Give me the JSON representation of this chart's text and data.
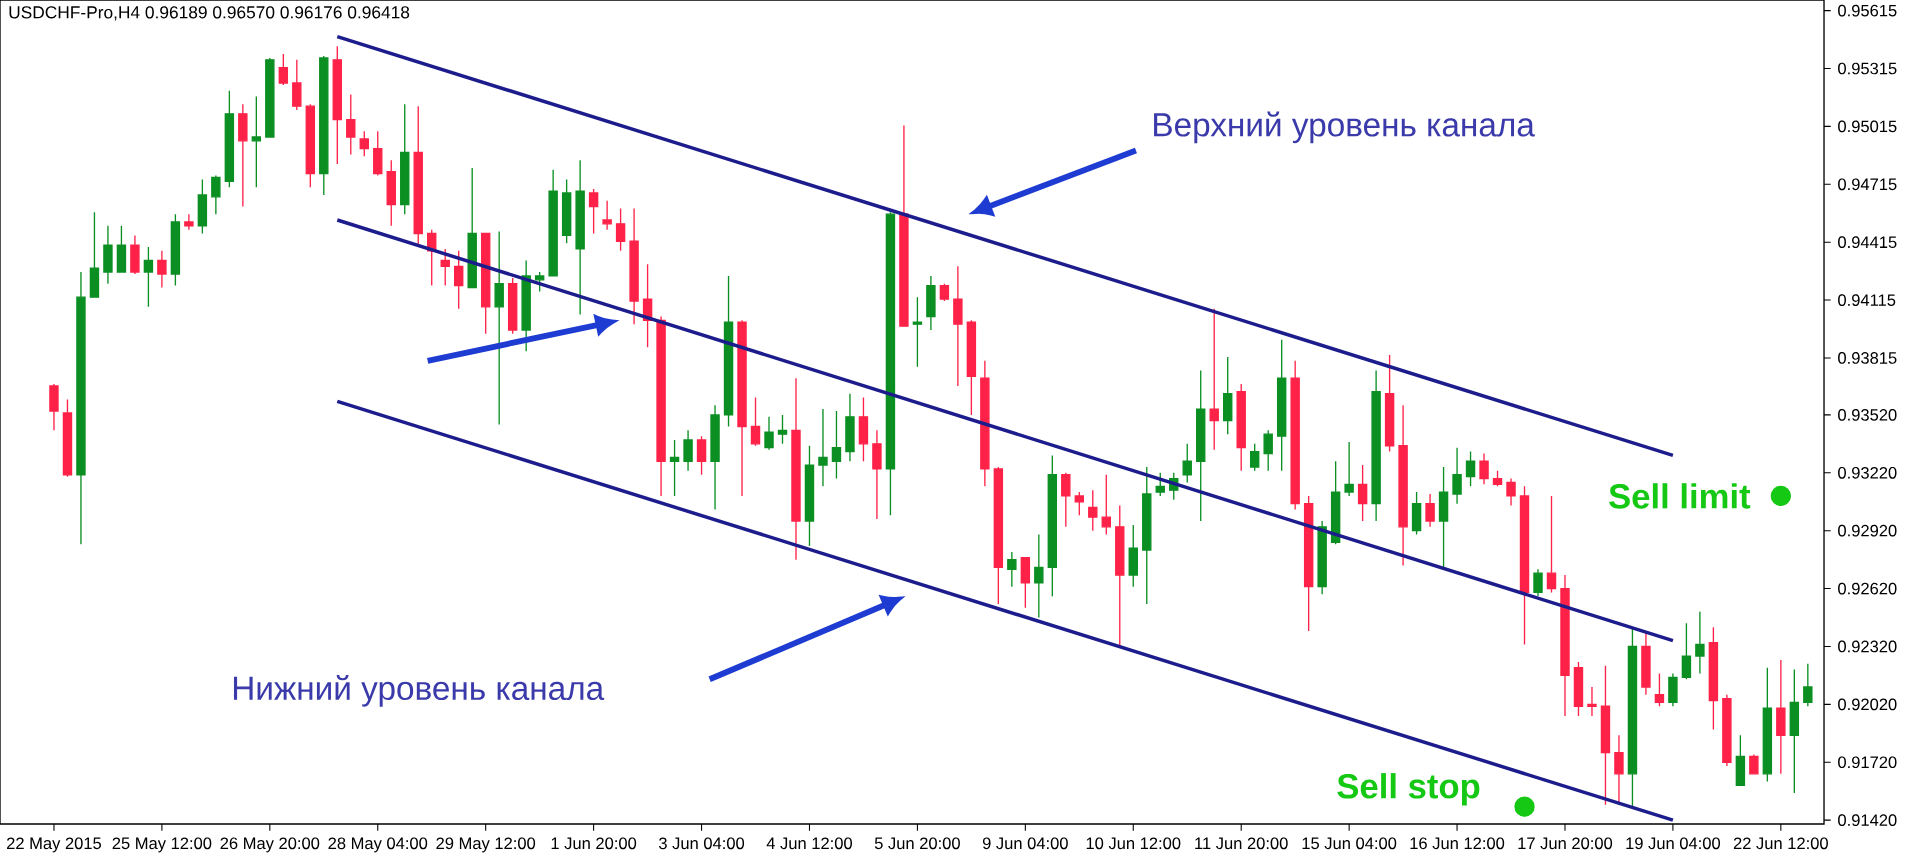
{
  "chart_data": {
    "type": "candlestick",
    "title": "USDCHF-Pro,H4  0.96189 0.96570 0.96176 0.96418",
    "categories": [
      "22 May 2015",
      null,
      null,
      null,
      null,
      null,
      null,
      null,
      "25 May 12:00",
      null,
      null,
      null,
      null,
      null,
      null,
      null,
      "26 May 20:00",
      null,
      null,
      null,
      null,
      null,
      null,
      null,
      "28 May 04:00",
      null,
      null,
      null,
      null,
      null,
      null,
      null,
      "29 May 12:00",
      null,
      null,
      null,
      null,
      null,
      null,
      null,
      "1 Jun 20:00",
      null,
      null,
      null,
      null,
      null,
      null,
      null,
      "3 Jun 04:00",
      null,
      null,
      null,
      null,
      null,
      null,
      null,
      "4 Jun 12:00",
      null,
      null,
      null,
      null,
      null,
      null,
      null,
      "5 Jun 20:00",
      null,
      null,
      null,
      null,
      null,
      null,
      null,
      "9 Jun 04:00",
      null,
      null,
      null,
      null,
      null,
      null,
      null,
      "10 Jun 12:00",
      null,
      null,
      null,
      null,
      null,
      null,
      null,
      "11 Jun 20:00",
      null,
      null,
      null,
      null,
      null,
      null,
      null,
      "15 Jun 04:00",
      null,
      null,
      null,
      null,
      null,
      null,
      null,
      "16 Jun 12:00",
      null,
      null,
      null,
      null,
      null,
      null,
      null,
      "17 Jun 20:00",
      null,
      null,
      null,
      null,
      null,
      null,
      null,
      "19 Jun 04:00",
      null,
      null,
      null,
      null,
      null,
      null,
      null,
      "22 Jun 12:00",
      null,
      null
    ],
    "ohlc": [
      [
        0.9367,
        0.9368,
        0.9344,
        0.9354
      ],
      [
        0.9353,
        0.936,
        0.932,
        0.9321
      ],
      [
        0.9321,
        0.9426,
        0.9285,
        0.9413
      ],
      [
        0.9413,
        0.9457,
        0.9413,
        0.9428
      ],
      [
        0.9426,
        0.945,
        0.942,
        0.944
      ],
      [
        0.9426,
        0.945,
        0.9426,
        0.944
      ],
      [
        0.944,
        0.9445,
        0.9425,
        0.9426
      ],
      [
        0.9426,
        0.9439,
        0.9408,
        0.9432
      ],
      [
        0.9432,
        0.9437,
        0.9418,
        0.9425
      ],
      [
        0.9425,
        0.9456,
        0.9419,
        0.9452
      ],
      [
        0.9452,
        0.9456,
        0.9448,
        0.945
      ],
      [
        0.945,
        0.9474,
        0.9446,
        0.9466
      ],
      [
        0.9465,
        0.9476,
        0.9456,
        0.9475
      ],
      [
        0.9473,
        0.952,
        0.947,
        0.9508
      ],
      [
        0.9508,
        0.9513,
        0.946,
        0.9494
      ],
      [
        0.9494,
        0.9517,
        0.947,
        0.9496
      ],
      [
        0.9496,
        0.9537,
        0.9496,
        0.9536
      ],
      [
        0.9532,
        0.9539,
        0.9523,
        0.9524
      ],
      [
        0.9524,
        0.9536,
        0.951,
        0.9512
      ],
      [
        0.9512,
        0.9513,
        0.947,
        0.9477
      ],
      [
        0.9477,
        0.9538,
        0.9466,
        0.9537
      ],
      [
        0.9536,
        0.9543,
        0.9482,
        0.9505
      ],
      [
        0.9505,
        0.9518,
        0.9487,
        0.9496
      ],
      [
        0.9495,
        0.9499,
        0.9486,
        0.949
      ],
      [
        0.949,
        0.9499,
        0.9476,
        0.9477
      ],
      [
        0.9478,
        0.9484,
        0.945,
        0.9461
      ],
      [
        0.9461,
        0.9513,
        0.9456,
        0.9488
      ],
      [
        0.9488,
        0.9512,
        0.9439,
        0.9446
      ],
      [
        0.9446,
        0.9448,
        0.9419,
        0.9437
      ],
      [
        0.9432,
        0.9438,
        0.9419,
        0.9429
      ],
      [
        0.9429,
        0.9437,
        0.9407,
        0.9419
      ],
      [
        0.9418,
        0.948,
        0.9418,
        0.9446
      ],
      [
        0.9446,
        0.9446,
        0.9394,
        0.9408
      ],
      [
        0.9408,
        0.9447,
        0.9347,
        0.942
      ],
      [
        0.942,
        0.9423,
        0.9394,
        0.9396
      ],
      [
        0.9396,
        0.9432,
        0.9385,
        0.9424
      ],
      [
        0.9422,
        0.9426,
        0.9416,
        0.9424
      ],
      [
        0.9424,
        0.9479,
        0.9424,
        0.9468
      ],
      [
        0.9445,
        0.9474,
        0.9441,
        0.9467
      ],
      [
        0.9438,
        0.9484,
        0.9404,
        0.9468
      ],
      [
        0.9467,
        0.9469,
        0.9446,
        0.946
      ],
      [
        0.9453,
        0.9463,
        0.9448,
        0.9451
      ],
      [
        0.9451,
        0.9459,
        0.9437,
        0.9442
      ],
      [
        0.9442,
        0.9459,
        0.9399,
        0.9411
      ],
      [
        0.9412,
        0.943,
        0.9387,
        0.9401
      ],
      [
        0.9401,
        0.9403,
        0.931,
        0.9328
      ],
      [
        0.9328,
        0.9339,
        0.931,
        0.933
      ],
      [
        0.9328,
        0.9344,
        0.9323,
        0.9339
      ],
      [
        0.9339,
        0.9341,
        0.9321,
        0.9328
      ],
      [
        0.9328,
        0.9357,
        0.9303,
        0.9352
      ],
      [
        0.9352,
        0.9424,
        0.9346,
        0.94
      ],
      [
        0.94,
        0.9401,
        0.931,
        0.9346
      ],
      [
        0.9346,
        0.9361,
        0.9336,
        0.9337
      ],
      [
        0.9335,
        0.9351,
        0.9334,
        0.9343
      ],
      [
        0.9342,
        0.9352,
        0.9337,
        0.9344
      ],
      [
        0.9344,
        0.9371,
        0.9277,
        0.9297
      ],
      [
        0.9297,
        0.9336,
        0.9284,
        0.9326
      ],
      [
        0.9326,
        0.9355,
        0.9315,
        0.933
      ],
      [
        0.9328,
        0.9354,
        0.9319,
        0.9335
      ],
      [
        0.9333,
        0.9363,
        0.9328,
        0.9351
      ],
      [
        0.9351,
        0.9361,
        0.9328,
        0.9337
      ],
      [
        0.9337,
        0.9344,
        0.9298,
        0.9324
      ],
      [
        0.9324,
        0.9457,
        0.93,
        0.9456
      ],
      [
        0.9456,
        0.9502,
        0.9398,
        0.9398
      ],
      [
        0.9399,
        0.9413,
        0.9377,
        0.94
      ],
      [
        0.9403,
        0.9424,
        0.9396,
        0.9419
      ],
      [
        0.9419,
        0.942,
        0.9411,
        0.9412
      ],
      [
        0.9412,
        0.9429,
        0.9367,
        0.9399
      ],
      [
        0.94,
        0.9401,
        0.9352,
        0.9372
      ],
      [
        0.9371,
        0.938,
        0.9315,
        0.9324
      ],
      [
        0.9324,
        0.9325,
        0.9254,
        0.9273
      ],
      [
        0.9272,
        0.9281,
        0.9263,
        0.9277
      ],
      [
        0.9278,
        0.9278,
        0.9252,
        0.9265
      ],
      [
        0.9265,
        0.929,
        0.9247,
        0.9273
      ],
      [
        0.9273,
        0.9331,
        0.9258,
        0.9321
      ],
      [
        0.9321,
        0.9322,
        0.9294,
        0.931
      ],
      [
        0.931,
        0.9312,
        0.93,
        0.9307
      ],
      [
        0.9304,
        0.9313,
        0.9292,
        0.9299
      ],
      [
        0.9299,
        0.9321,
        0.929,
        0.9294
      ],
      [
        0.9294,
        0.9305,
        0.9232,
        0.9269
      ],
      [
        0.9269,
        0.9295,
        0.9263,
        0.9283
      ],
      [
        0.9282,
        0.9325,
        0.9254,
        0.9311
      ],
      [
        0.9312,
        0.9322,
        0.931,
        0.9315
      ],
      [
        0.9313,
        0.9322,
        0.9308,
        0.9319
      ],
      [
        0.9321,
        0.9337,
        0.9317,
        0.9328
      ],
      [
        0.9328,
        0.9375,
        0.9297,
        0.9355
      ],
      [
        0.9355,
        0.9407,
        0.9334,
        0.9349
      ],
      [
        0.9349,
        0.9382,
        0.9342,
        0.9363
      ],
      [
        0.9364,
        0.9368,
        0.9323,
        0.9335
      ],
      [
        0.9325,
        0.9337,
        0.9323,
        0.9333
      ],
      [
        0.9332,
        0.9344,
        0.9323,
        0.9342
      ],
      [
        0.9341,
        0.9391,
        0.9323,
        0.9371
      ],
      [
        0.9371,
        0.938,
        0.9303,
        0.9306
      ],
      [
        0.9306,
        0.931,
        0.924,
        0.9263
      ],
      [
        0.9263,
        0.9297,
        0.9259,
        0.9294
      ],
      [
        0.9286,
        0.9328,
        0.9285,
        0.9312
      ],
      [
        0.9312,
        0.9338,
        0.931,
        0.9316
      ],
      [
        0.9316,
        0.9326,
        0.9297,
        0.9306
      ],
      [
        0.9306,
        0.9375,
        0.9297,
        0.9364
      ],
      [
        0.9363,
        0.9383,
        0.9333,
        0.9336
      ],
      [
        0.9336,
        0.9357,
        0.9274,
        0.9294
      ],
      [
        0.9292,
        0.9312,
        0.929,
        0.9306
      ],
      [
        0.9306,
        0.9311,
        0.9294,
        0.9297
      ],
      [
        0.9297,
        0.9325,
        0.9272,
        0.9312
      ],
      [
        0.9311,
        0.9335,
        0.9306,
        0.9321
      ],
      [
        0.932,
        0.9333,
        0.9315,
        0.9328
      ],
      [
        0.9328,
        0.9332,
        0.9316,
        0.9319
      ],
      [
        0.9319,
        0.9323,
        0.9315,
        0.9316
      ],
      [
        0.9317,
        0.9319,
        0.9305,
        0.931
      ],
      [
        0.931,
        0.9315,
        0.9233,
        0.926
      ],
      [
        0.926,
        0.9272,
        0.9258,
        0.927
      ],
      [
        0.927,
        0.931,
        0.926,
        0.9262
      ],
      [
        0.9262,
        0.9269,
        0.9196,
        0.9217
      ],
      [
        0.9221,
        0.9224,
        0.9196,
        0.9201
      ],
      [
        0.9202,
        0.9211,
        0.9196,
        0.9201
      ],
      [
        0.9201,
        0.9222,
        0.915,
        0.9177
      ],
      [
        0.9177,
        0.9186,
        0.915,
        0.9166
      ],
      [
        0.9166,
        0.9242,
        0.9149,
        0.9232
      ],
      [
        0.9232,
        0.9239,
        0.9207,
        0.9211
      ],
      [
        0.9207,
        0.9218,
        0.9201,
        0.9203
      ],
      [
        0.9203,
        0.9218,
        0.9201,
        0.9216
      ],
      [
        0.9216,
        0.9244,
        0.9215,
        0.9227
      ],
      [
        0.9227,
        0.925,
        0.9218,
        0.9233
      ],
      [
        0.9234,
        0.9242,
        0.9189,
        0.9204
      ],
      [
        0.9205,
        0.9207,
        0.917,
        0.9172
      ],
      [
        0.916,
        0.9186,
        0.916,
        0.9175
      ],
      [
        0.9175,
        0.9176,
        0.9166,
        0.9166
      ],
      [
        0.9166,
        0.9221,
        0.9162,
        0.92
      ],
      [
        0.92,
        0.9225,
        0.9166,
        0.9186
      ],
      [
        0.9186,
        0.922,
        0.9156,
        0.9203
      ],
      [
        0.9203,
        0.9223,
        0.9201,
        0.9211
      ]
    ],
    "colors": [
      "#ff2248",
      "#ff2248",
      "#0b8f22",
      "#0b8f22",
      "#0b8f22",
      "#0b8f22",
      "#ff2248",
      "#0b8f22",
      "#ff2248",
      "#0b8f22",
      "#ff2248",
      "#0b8f22",
      "#0b8f22",
      "#0b8f22",
      "#ff2248",
      "#0b8f22",
      "#0b8f22",
      "#ff2248",
      "#ff2248",
      "#ff2248",
      "#0b8f22",
      "#ff2248",
      "#ff2248",
      "#ff2248",
      "#ff2248",
      "#ff2248",
      "#0b8f22",
      "#ff2248",
      "#ff2248",
      "#ff2248",
      "#ff2248",
      "#0b8f22",
      "#ff2248",
      "#0b8f22",
      "#ff2248",
      "#0b8f22",
      "#0b8f22",
      "#0b8f22",
      "#0b8f22",
      "#0b8f22",
      "#ff2248",
      "#ff2248",
      "#ff2248",
      "#ff2248",
      "#ff2248",
      "#ff2248",
      "#0b8f22",
      "#0b8f22",
      "#ff2248",
      "#0b8f22",
      "#0b8f22",
      "#ff2248",
      "#ff2248",
      "#0b8f22",
      "#0b8f22",
      "#ff2248",
      "#0b8f22",
      "#0b8f22",
      "#0b8f22",
      "#0b8f22",
      "#ff2248",
      "#ff2248",
      "#0b8f22",
      "#ff2248",
      "#0b8f22",
      "#0b8f22",
      "#ff2248",
      "#ff2248",
      "#ff2248",
      "#ff2248",
      "#ff2248",
      "#0b8f22",
      "#ff2248",
      "#0b8f22",
      "#0b8f22",
      "#ff2248",
      "#ff2248",
      "#ff2248",
      "#ff2248",
      "#ff2248",
      "#0b8f22",
      "#0b8f22",
      "#0b8f22",
      "#0b8f22",
      "#0b8f22",
      "#0b8f22",
      "#ff2248",
      "#0b8f22",
      "#ff2248",
      "#0b8f22",
      "#0b8f22",
      "#0b8f22",
      "#ff2248",
      "#ff2248",
      "#0b8f22",
      "#0b8f22",
      "#0b8f22",
      "#ff2248",
      "#0b8f22",
      "#ff2248",
      "#ff2248",
      "#0b8f22",
      "#ff2248",
      "#0b8f22",
      "#0b8f22",
      "#0b8f22",
      "#ff2248",
      "#ff2248",
      "#ff2248",
      "#ff2248",
      "#0b8f22",
      "#ff2248",
      "#ff2248",
      "#ff2248",
      "#ff2248",
      "#ff2248",
      "#ff2248",
      "#0b8f22",
      "#ff2248",
      "#ff2248",
      "#0b8f22",
      "#0b8f22",
      "#0b8f22",
      "#ff2248",
      "#ff2248",
      "#0b8f22",
      "#ff2248",
      "#0b8f22",
      "#ff2248",
      "#0b8f22",
      "#0b8f22"
    ],
    "series": [
      {
        "type": "line",
        "color": "#1c1c8c",
        "values": [
          null,
          null,
          null,
          null,
          null,
          null,
          null,
          null,
          null,
          null,
          null,
          null,
          null,
          null,
          null,
          null,
          null,
          null,
          null,
          null,
          null,
          0.9548,
          null,
          null,
          null,
          null,
          null,
          null,
          null,
          null,
          null,
          null,
          null,
          null,
          null,
          null,
          null,
          null,
          null,
          null,
          null,
          null,
          null,
          null,
          null,
          null,
          null,
          null,
          null,
          null,
          null,
          null,
          null,
          null,
          null,
          null,
          null,
          null,
          null,
          null,
          null,
          null,
          null,
          null,
          null,
          null,
          null,
          null,
          null,
          null,
          null,
          null,
          null,
          null,
          null,
          null,
          null,
          null,
          null,
          null,
          null,
          null,
          null,
          null,
          null,
          null,
          null,
          null,
          null,
          null,
          null,
          null,
          null,
          null,
          null,
          null,
          null,
          null,
          null,
          null,
          null,
          null,
          null,
          null,
          null,
          null,
          null,
          null,
          null,
          null,
          null,
          null,
          null,
          null,
          null,
          null,
          null,
          null,
          null,
          null,
          0.9331,
          null,
          null,
          null,
          null,
          null,
          null,
          null,
          null,
          null,
          null
        ]
      },
      {
        "type": "line",
        "color": "#1c1c8c",
        "values": [
          null,
          null,
          null,
          null,
          null,
          null,
          null,
          null,
          null,
          null,
          null,
          null,
          null,
          null,
          null,
          null,
          null,
          null,
          null,
          null,
          null,
          0.9453,
          null,
          null,
          null,
          null,
          null,
          null,
          null,
          null,
          null,
          null,
          null,
          null,
          null,
          null,
          null,
          null,
          null,
          null,
          null,
          null,
          null,
          null,
          null,
          null,
          null,
          null,
          null,
          null,
          null,
          null,
          null,
          null,
          null,
          null,
          null,
          null,
          null,
          null,
          null,
          null,
          null,
          null,
          null,
          null,
          null,
          null,
          null,
          null,
          null,
          null,
          null,
          null,
          null,
          null,
          null,
          null,
          null,
          null,
          null,
          null,
          null,
          null,
          null,
          null,
          null,
          null,
          null,
          null,
          null,
          null,
          null,
          null,
          null,
          null,
          null,
          null,
          null,
          null,
          null,
          null,
          null,
          null,
          null,
          null,
          null,
          null,
          null,
          null,
          null,
          null,
          null,
          null,
          null,
          null,
          null,
          null,
          null,
          null,
          0.9235,
          null,
          null,
          null,
          null,
          null,
          null,
          null,
          null,
          null,
          null
        ]
      },
      {
        "type": "line",
        "color": "#1c1c8c",
        "values": [
          null,
          null,
          null,
          null,
          null,
          null,
          null,
          null,
          null,
          null,
          null,
          null,
          null,
          null,
          null,
          null,
          null,
          null,
          null,
          null,
          null,
          0.9359,
          null,
          null,
          null,
          null,
          null,
          null,
          null,
          null,
          null,
          null,
          null,
          null,
          null,
          null,
          null,
          null,
          null,
          null,
          null,
          null,
          null,
          null,
          null,
          null,
          null,
          null,
          null,
          null,
          null,
          null,
          null,
          null,
          null,
          null,
          null,
          null,
          null,
          null,
          null,
          null,
          null,
          null,
          null,
          null,
          null,
          null,
          null,
          null,
          null,
          null,
          null,
          null,
          null,
          null,
          null,
          null,
          null,
          null,
          null,
          null,
          null,
          null,
          null,
          null,
          null,
          null,
          null,
          null,
          null,
          null,
          null,
          null,
          null,
          null,
          null,
          null,
          null,
          null,
          null,
          null,
          null,
          null,
          null,
          null,
          null,
          null,
          null,
          null,
          null,
          null,
          null,
          null,
          null,
          null,
          null,
          null,
          null,
          null,
          0.9142,
          null,
          null,
          null,
          null,
          null,
          null,
          null,
          null,
          null,
          null
        ]
      },
      {
        "type": "scatter",
        "color": "#14c814",
        "marker": "circle",
        "values": [
          null,
          null,
          null,
          null,
          null,
          null,
          null,
          null,
          null,
          null,
          null,
          null,
          null,
          null,
          null,
          null,
          null,
          null,
          null,
          null,
          null,
          null,
          null,
          null,
          null,
          null,
          null,
          null,
          null,
          null,
          null,
          null,
          null,
          null,
          null,
          null,
          null,
          null,
          null,
          null,
          null,
          null,
          null,
          null,
          null,
          null,
          null,
          null,
          null,
          null,
          null,
          null,
          null,
          null,
          null,
          null,
          null,
          null,
          null,
          null,
          null,
          null,
          null,
          null,
          null,
          null,
          null,
          null,
          null,
          null,
          null,
          null,
          null,
          null,
          null,
          null,
          null,
          null,
          null,
          null,
          null,
          null,
          null,
          null,
          null,
          null,
          null,
          null,
          null,
          null,
          null,
          null,
          null,
          null,
          null,
          null,
          null,
          null,
          null,
          null,
          null,
          null,
          null,
          null,
          null,
          null,
          null,
          null,
          null,
          0.9149,
          null,
          null,
          null,
          null,
          null,
          null,
          null,
          null,
          null,
          null,
          null,
          null,
          null,
          null,
          null,
          null,
          null,
          null,
          0.931,
          null,
          null
        ]
      }
    ],
    "ylim": [
      0.914,
      0.9567
    ],
    "yticks": [
      0.95615,
      0.95315,
      0.95015,
      0.94715,
      0.94415,
      0.94115,
      0.93815,
      {
        "value": 0.9352,
        "label": "0.93520"
      },
      {
        "value": 0.9322,
        "label": "0.93220"
      },
      {
        "value": 0.9292,
        "label": "0.92920"
      },
      {
        "value": 0.9262,
        "label": "0.92620"
      },
      {
        "value": 0.9232,
        "label": "0.92320"
      },
      {
        "value": 0.9202,
        "label": "0.92020"
      },
      {
        "value": 0.9172,
        "label": "0.91720"
      },
      {
        "value": 0.9142,
        "label": "0.91420"
      }
    ],
    "annotations": [
      "Верхний уровень канала",
      "Нижний уровень канала",
      {
        "text": "Sell limit",
        "x": "22 Jun 12:00",
        "y": 0.931
      },
      "Sell stop"
    ]
  }
}
